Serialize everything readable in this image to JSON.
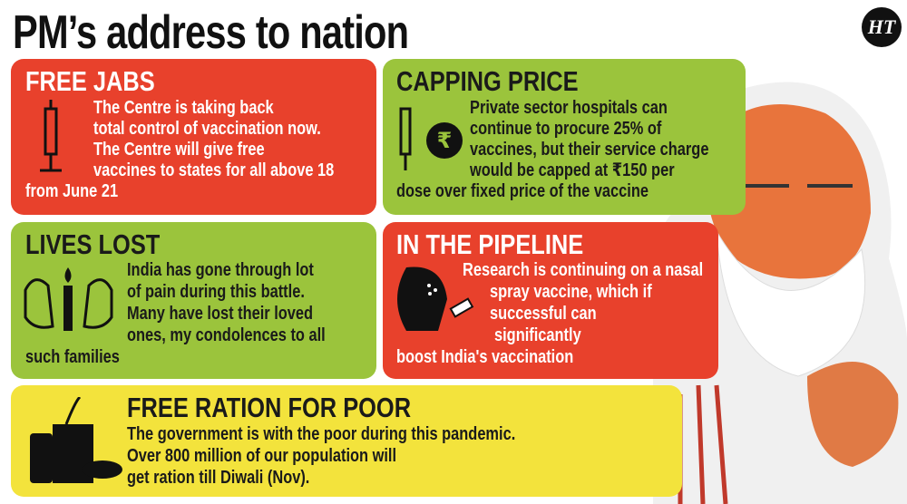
{
  "header": {
    "title": "PM’s address to nation",
    "logo": "HT"
  },
  "panels": [
    {
      "heading": "FREE JABS",
      "lines": [
        "The Centre is taking back",
        "total control of vaccination now.",
        "The Centre will give free",
        "vaccines to states for all above 18",
        "from June 21"
      ]
    },
    {
      "heading": "CAPPING PRICE",
      "lines": [
        "Private sector hospitals can",
        "continue to procure 25% of",
        "vaccines, but their service charge",
        "would be capped at ₹150 per",
        "dose over fixed price of the vaccine"
      ]
    },
    {
      "heading": "LIVES LOST",
      "lines": [
        "India has gone through lot",
        "of pain during this battle.",
        "Many have lost their loved",
        "ones, my condolences to all",
        "such families"
      ]
    },
    {
      "heading": "IN THE PIPELINE",
      "lines": [
        "Research is continuing on a nasal",
        "spray vaccine, which if",
        "successful can",
        "significantly",
        "boost India's vaccination"
      ]
    },
    {
      "heading": "FREE RATION FOR POOR",
      "lines": [
        "The government is with the poor during this pandemic.",
        "Over 800 million of our population will",
        "get ration till Diwali (Nov)."
      ]
    }
  ]
}
